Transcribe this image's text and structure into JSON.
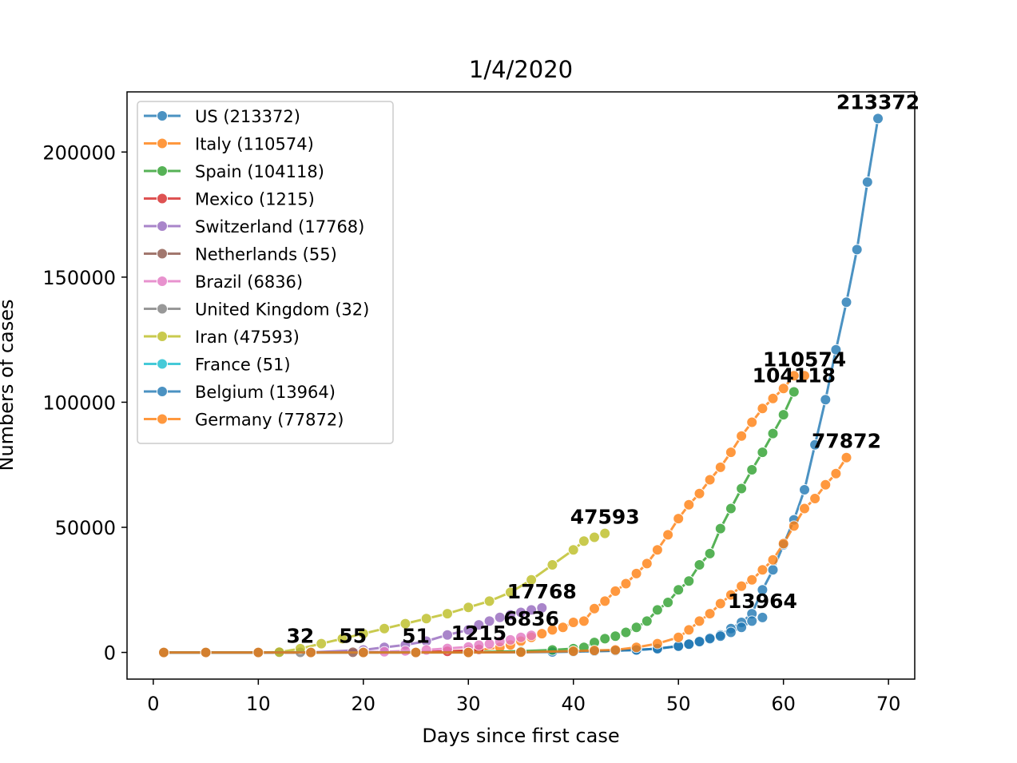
{
  "chart_data": {
    "type": "line",
    "title": "1/4/2020",
    "xlabel": "Days since first case",
    "ylabel": "Numbers of cases",
    "xlim": [
      -2.5,
      72.5
    ],
    "ylim": [
      -10669,
      224041
    ],
    "xticks": [
      0,
      10,
      20,
      30,
      40,
      50,
      60,
      70
    ],
    "yticks": [
      0,
      50000,
      100000,
      150000,
      200000
    ],
    "grid": false,
    "legend_position": "top-left",
    "series": [
      {
        "name": "US (213372)",
        "color": "#1f77b4",
        "last_label": "213372",
        "x": [
          1,
          5,
          10,
          15,
          20,
          25,
          30,
          35,
          38,
          40,
          42,
          44,
          46,
          48,
          50,
          51,
          52,
          53,
          54,
          55,
          56,
          57,
          58,
          59,
          60,
          61,
          62,
          63,
          64,
          65,
          66,
          67,
          68,
          69
        ],
        "y": [
          1,
          2,
          5,
          10,
          15,
          40,
          60,
          100,
          200,
          400,
          500,
          700,
          1000,
          1500,
          2500,
          3300,
          4500,
          5800,
          7000,
          9500,
          12000,
          15500,
          25000,
          33000,
          43000,
          53000,
          65000,
          83000,
          101000,
          121000,
          140000,
          161000,
          188000,
          213372
        ]
      },
      {
        "name": "Italy (110574)",
        "color": "#ff7f0e",
        "last_label": "110574",
        "x": [
          1,
          5,
          10,
          15,
          20,
          25,
          30,
          33,
          34,
          35,
          36,
          37,
          38,
          39,
          40,
          41,
          42,
          43,
          44,
          45,
          46,
          47,
          48,
          49,
          50,
          51,
          52,
          53,
          54,
          55,
          56,
          57,
          58,
          59,
          60,
          61,
          62
        ],
        "y": [
          2,
          3,
          3,
          3,
          3,
          3,
          400,
          2000,
          3000,
          4500,
          6000,
          7500,
          9000,
          10000,
          12000,
          12500,
          17500,
          20500,
          24500,
          27500,
          31500,
          35500,
          41000,
          47000,
          53500,
          59000,
          63500,
          69000,
          74000,
          80000,
          86500,
          92000,
          97500,
          101500,
          105500,
          110574,
          110574
        ]
      },
      {
        "name": "Spain (104118)",
        "color": "#2ca02c",
        "last_label": "104118",
        "x": [
          1,
          5,
          10,
          15,
          20,
          25,
          30,
          35,
          38,
          40,
          41,
          42,
          43,
          44,
          45,
          46,
          47,
          48,
          49,
          50,
          51,
          52,
          53,
          54,
          55,
          56,
          57,
          58,
          59,
          60,
          61
        ],
        "y": [
          1,
          1,
          2,
          2,
          2,
          2,
          100,
          500,
          1000,
          1500,
          2000,
          4000,
          5500,
          6500,
          8000,
          10000,
          12500,
          17000,
          20000,
          25000,
          28500,
          35000,
          39500,
          49500,
          57500,
          65500,
          73000,
          80000,
          87500,
          95000,
          104118
        ]
      },
      {
        "name": "Mexico (1215)",
        "color": "#d62728",
        "last_label": "1215",
        "x": [
          1,
          5,
          10,
          15,
          20,
          25,
          28,
          30,
          31
        ],
        "y": [
          1,
          4,
          5,
          10,
          20,
          100,
          400,
          800,
          1215
        ]
      },
      {
        "name": "Switzerland (17768)",
        "color": "#9467bd",
        "last_label": "17768",
        "x": [
          1,
          5,
          10,
          15,
          20,
          22,
          24,
          26,
          28,
          30,
          31,
          32,
          33,
          34,
          35,
          36,
          37
        ],
        "y": [
          1,
          1,
          2,
          30,
          1000,
          2000,
          3000,
          4500,
          7000,
          9000,
          11000,
          12500,
          14000,
          15000,
          16000,
          17000,
          17768
        ]
      },
      {
        "name": "Netherlands (55)",
        "color": "#8c564b",
        "last_label": "55",
        "x": [
          1,
          5,
          10,
          15,
          19
        ],
        "y": [
          1,
          5,
          10,
          30,
          55
        ]
      },
      {
        "name": "Brazil (6836)",
        "color": "#e377c2",
        "last_label": "6836",
        "x": [
          1,
          5,
          10,
          15,
          20,
          22,
          24,
          26,
          28,
          30,
          31,
          32,
          33,
          34,
          35,
          36
        ],
        "y": [
          1,
          2,
          2,
          20,
          100,
          300,
          600,
          1000,
          1600,
          2200,
          2900,
          3400,
          4300,
          5000,
          6000,
          6836
        ]
      },
      {
        "name": "United Kingdom (32)",
        "color": "#7f7f7f",
        "last_label": "32",
        "x": [
          1,
          5,
          10,
          12,
          14
        ],
        "y": [
          1,
          5,
          10,
          20,
          32
        ]
      },
      {
        "name": "Iran (47593)",
        "color": "#bcbd22",
        "last_label": "47593",
        "x": [
          1,
          5,
          10,
          12,
          14,
          16,
          18,
          20,
          22,
          24,
          26,
          28,
          30,
          32,
          34,
          36,
          38,
          40,
          41,
          42,
          43
        ],
        "y": [
          2,
          2,
          5,
          100,
          1500,
          3500,
          5500,
          7500,
          9500,
          11500,
          13500,
          15500,
          18000,
          20500,
          24000,
          29000,
          35000,
          41000,
          44500,
          46000,
          47593
        ]
      },
      {
        "name": "France (51)",
        "color": "#17becf",
        "last_label": "51",
        "x": [
          1,
          5,
          10,
          15,
          20,
          25
        ],
        "y": [
          1,
          5,
          10,
          20,
          35,
          51
        ]
      },
      {
        "name": "Belgium (13964)",
        "color": "#1f77b4",
        "last_label": "13964",
        "x": [
          1,
          5,
          10,
          15,
          20,
          25,
          30,
          35,
          40,
          42,
          44,
          46,
          48,
          50,
          51,
          52,
          53,
          54,
          55,
          56,
          57,
          58
        ],
        "y": [
          1,
          1,
          1,
          1,
          1,
          1,
          1,
          100,
          300,
          500,
          700,
          1000,
          1500,
          2500,
          3300,
          4300,
          5500,
          6500,
          8000,
          10000,
          12500,
          13964
        ]
      },
      {
        "name": "Germany (77872)",
        "color": "#ff7f0e",
        "last_label": "77872",
        "x": [
          1,
          5,
          10,
          15,
          20,
          25,
          30,
          35,
          40,
          42,
          44,
          46,
          48,
          50,
          51,
          52,
          53,
          54,
          55,
          56,
          57,
          58,
          59,
          60,
          61,
          62,
          63,
          64,
          65,
          66
        ],
        "y": [
          1,
          1,
          1,
          1,
          1,
          1,
          1,
          100,
          500,
          800,
          1000,
          2000,
          3500,
          6000,
          9000,
          12500,
          15500,
          19500,
          23000,
          26500,
          29000,
          33000,
          37000,
          43500,
          50500,
          57500,
          61500,
          67000,
          71500,
          77872
        ]
      }
    ]
  }
}
